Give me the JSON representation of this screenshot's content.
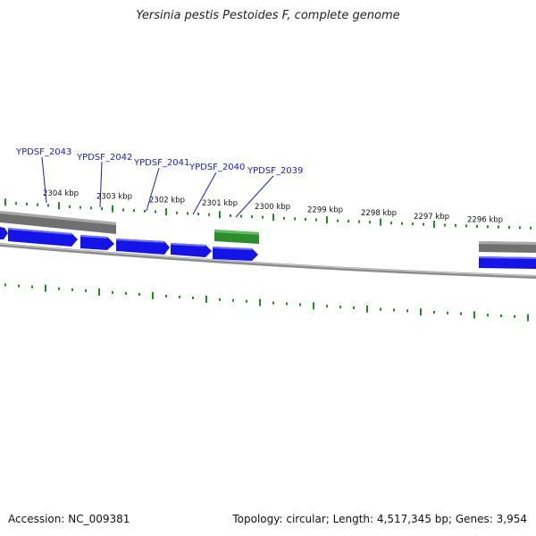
{
  "title": "Yersinia pestis Pestoides F, complete genome",
  "footer": {
    "accession": "Accession: NC_009381",
    "summary": "Topology: circular; Length: 4,517,345 bp; Genes: 3,954"
  },
  "colors": {
    "cds": "#1414e6",
    "rna": "#2e8b2e",
    "gray_feature": "#707070",
    "backbone": "#8c8c8c",
    "tick": "#1e8c1e",
    "label": "#1a1acc"
  },
  "position_labels": [
    "2304 kbp",
    "2303 kbp",
    "2302 kbp",
    "2301 kbp",
    "2300 kbp",
    "2299 kbp",
    "2298 kbp",
    "2297 kbp",
    "2296 kbp"
  ],
  "gene_labels": [
    "YPDSF_2043",
    "YPDSF_2042",
    "YPDSF_2041",
    "YPDSF_2040",
    "YPDSF_2039"
  ]
}
